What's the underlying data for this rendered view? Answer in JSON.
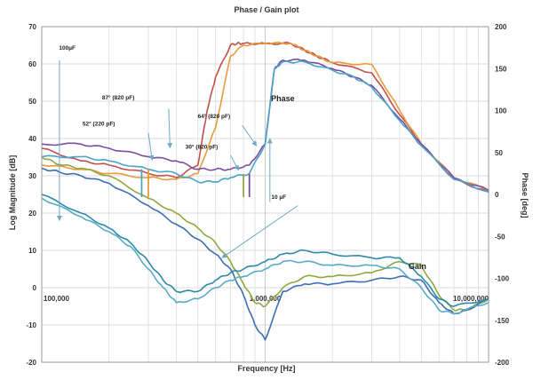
{
  "chart_data": {
    "type": "line",
    "title": "Phase / Gain plot",
    "xlabel": "Frequency [Hz]",
    "ylabel_left": "Log Magnitude [dB]",
    "ylabel_right": "Phase [deg]",
    "x_scale": "log",
    "xlim": [
      100000,
      10000000
    ],
    "x_ticks": [
      {
        "value": 100000,
        "label": "100,000"
      },
      {
        "value": 1000000,
        "label": "1,000,000"
      },
      {
        "value": 10000000,
        "label": "10,000,000"
      }
    ],
    "ylim_left": [
      -20,
      70
    ],
    "y_ticks_left": [
      {
        "value": -20,
        "label": "-20"
      },
      {
        "value": -10,
        "label": "-10"
      },
      {
        "value": 0,
        "label": "0"
      },
      {
        "value": 10,
        "label": "10"
      },
      {
        "value": 20,
        "label": "20"
      },
      {
        "value": 30,
        "label": "30"
      },
      {
        "value": 40,
        "label": "40"
      },
      {
        "value": 50,
        "label": "50"
      },
      {
        "value": 60,
        "label": "60"
      },
      {
        "value": 70,
        "label": "70"
      }
    ],
    "ylim_right": [
      -200,
      200
    ],
    "y_ticks_right": [
      {
        "value": -200,
        "label": "-200"
      },
      {
        "value": -150,
        "label": "-150"
      },
      {
        "value": -100,
        "label": "-100"
      },
      {
        "value": -50,
        "label": "-50"
      },
      {
        "value": 0,
        "label": "0"
      },
      {
        "value": 50,
        "label": "50"
      },
      {
        "value": 100,
        "label": "100"
      },
      {
        "value": 150,
        "label": "150"
      },
      {
        "value": 200,
        "label": "200"
      }
    ],
    "grid": true,
    "series_labels": [
      {
        "text": "Phase",
        "x": 1200000,
        "y": 50
      },
      {
        "text": "Gain",
        "x": 4800000,
        "y": 5
      }
    ],
    "annotations": [
      {
        "text": "100µF",
        "x": 130000,
        "y": 63.8
      },
      {
        "text": "87° (820 pF)",
        "x": 220000,
        "y": 50.5
      },
      {
        "text": "52° (220 pF)",
        "x": 180000,
        "y": 43.5
      },
      {
        "text": "64° (820 pF)",
        "x": 590000,
        "y": 45.5
      },
      {
        "text": "30° (820 pF)",
        "x": 520000,
        "y": 37.3
      },
      {
        "text": "10 µF",
        "x": 1150000,
        "y": 23.8
      }
    ],
    "arrows": [
      {
        "from": [
          120000,
          61
        ],
        "to": [
          120000,
          18
        ]
      },
      {
        "from": [
          370000,
          48
        ],
        "to": [
          375000,
          37.5
        ]
      },
      {
        "from": [
          300000,
          41.5
        ],
        "to": [
          312000,
          34.2
        ]
      },
      {
        "from": [
          790000,
          43.5
        ],
        "to": [
          915000,
          38
        ]
      },
      {
        "from": [
          700000,
          35.5
        ],
        "to": [
          760000,
          31.5
        ]
      },
      {
        "from": [
          1050000,
          23
        ],
        "to": [
          1050000,
          40
        ]
      },
      {
        "from": [
          1400000,
          22
        ],
        "to": [
          640000,
          8
        ]
      }
    ],
    "markers": [
      {
        "x": 280000,
        "y_top": 31.8,
        "y_bottom": 24.3,
        "color": "#4aa3c8"
      },
      {
        "x": 300000,
        "y_top": 31.8,
        "y_bottom": 24.3,
        "color": "#e89a3c"
      },
      {
        "x": 800000,
        "y_top": 30.5,
        "y_bottom": 24.3,
        "color": "#8fa840"
      },
      {
        "x": 850000,
        "y_top": 30.5,
        "y_bottom": 24.3,
        "color": "#7a4fa0"
      }
    ],
    "series": [
      {
        "axis": "right",
        "color": "#c0504d",
        "x": [
          100000,
          150000,
          200000,
          300000,
          400000,
          500000,
          550000,
          600000,
          700000,
          750000,
          800000,
          1000000,
          1300000,
          1500000,
          1700000,
          2000000,
          3000000,
          4000000,
          5000000,
          7000000,
          10000000
        ],
        "values": [
          55,
          40,
          35,
          25,
          20,
          35,
          100,
          140,
          178,
          180,
          180,
          180,
          180,
          172,
          165,
          157,
          145,
          95,
          60,
          18,
          3
        ]
      },
      {
        "axis": "right",
        "color": "#e89a3c",
        "x": [
          100000,
          150000,
          200000,
          300000,
          400000,
          500000,
          600000,
          700000,
          800000,
          1000000,
          1300000,
          1500000,
          1700000,
          2000000,
          3000000,
          4000000,
          5000000,
          7000000,
          10000000
        ],
        "values": [
          35,
          30,
          25,
          20,
          18,
          25,
          80,
          165,
          178,
          180,
          180,
          172,
          165,
          157,
          155,
          100,
          60,
          20,
          5
        ]
      },
      {
        "axis": "right",
        "color": "#7a4fa0",
        "x": [
          100000,
          150000,
          200000,
          300000,
          400000,
          500000,
          600000,
          700000,
          850000,
          1000000,
          1100000,
          1200000,
          1500000,
          2000000,
          2500000,
          3000000,
          4000000,
          5000000,
          7000000,
          10000000
        ],
        "values": [
          60,
          60,
          55,
          45,
          40,
          30,
          30,
          30,
          35,
          60,
          150,
          160,
          160,
          150,
          140,
          130,
          90,
          60,
          20,
          5
        ]
      },
      {
        "axis": "right",
        "color": "#4aa3c8",
        "x": [
          100000,
          150000,
          200000,
          300000,
          400000,
          500000,
          600000,
          700000,
          850000,
          1000000,
          1100000,
          1200000,
          1500000,
          2000000,
          2500000,
          3000000,
          4000000,
          5000000,
          7000000,
          10000000
        ],
        "values": [
          45,
          45,
          40,
          30,
          25,
          15,
          15,
          20,
          25,
          60,
          150,
          158,
          158,
          148,
          140,
          128,
          88,
          58,
          18,
          3
        ]
      },
      {
        "axis": "left",
        "color": "#8fa840",
        "x": [
          100000,
          120000,
          150000,
          200000,
          300000,
          400000,
          500000,
          600000,
          700000,
          800000,
          900000,
          1000000,
          1200000,
          1500000,
          2000000,
          3000000,
          4000000,
          5000000,
          6000000,
          7000000,
          8000000,
          10000000
        ],
        "values": [
          35,
          33,
          32,
          30,
          24,
          20,
          16,
          12,
          7,
          1,
          -4,
          -5,
          0,
          3,
          3,
          4,
          7,
          6,
          -2,
          -6,
          -6,
          -3
        ]
      },
      {
        "axis": "left",
        "color": "#3d6fb0",
        "x": [
          100000,
          120000,
          150000,
          200000,
          300000,
          400000,
          500000,
          600000,
          700000,
          800000,
          900000,
          1000000,
          1200000,
          1500000,
          2000000,
          3000000,
          4000000,
          5000000,
          6000000,
          7000000,
          8000000,
          10000000
        ],
        "values": [
          32,
          31,
          30,
          28,
          22,
          17,
          13,
          9,
          5,
          -2,
          -10,
          -14,
          -1,
          1,
          1,
          2,
          3,
          2,
          -4,
          -7,
          -6,
          -3
        ]
      },
      {
        "axis": "left",
        "color": "#2d8aa8",
        "x": [
          100000,
          150000,
          200000,
          250000,
          300000,
          350000,
          400000,
          500000,
          600000,
          700000,
          800000,
          1000000,
          1200000,
          1500000,
          2000000,
          3000000,
          4000000,
          5000000,
          6000000,
          7000000,
          10000000
        ],
        "values": [
          25,
          20,
          16,
          12,
          7,
          2,
          -1,
          -1,
          2,
          4,
          5,
          7,
          9,
          10,
          9,
          8,
          8,
          3,
          -3,
          -5,
          -3
        ]
      },
      {
        "axis": "left",
        "color": "#5aabc8",
        "x": [
          100000,
          150000,
          200000,
          250000,
          300000,
          350000,
          400000,
          500000,
          600000,
          700000,
          800000,
          1000000,
          1200000,
          1500000,
          2000000,
          3000000,
          4000000,
          5000000,
          6000000,
          7000000,
          10000000
        ],
        "values": [
          24,
          19,
          15,
          11,
          5,
          0,
          -4,
          -3,
          0,
          2,
          3,
          5,
          7,
          7,
          6,
          6,
          5,
          0,
          -6,
          -7,
          -4
        ]
      }
    ]
  }
}
